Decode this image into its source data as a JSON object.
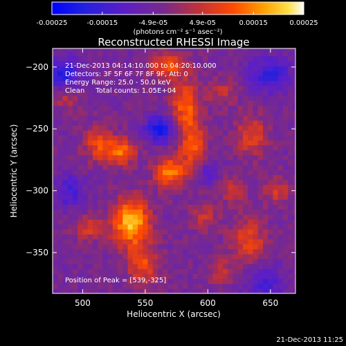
{
  "chart_data": {
    "type": "heatmap",
    "title": "Reconstructed RHESSI Image",
    "xlabel": "Heliocentric X (arcsec)",
    "ylabel": "Heliocentric Y (arcsec)",
    "xlim": [
      476,
      670
    ],
    "ylim": [
      -383,
      -185
    ],
    "x_ticks": [
      500,
      550,
      600,
      650
    ],
    "y_ticks": [
      -200,
      -250,
      -300,
      -350
    ],
    "colorbar": {
      "range": [
        -0.00025,
        0.00025
      ],
      "tick_values": [
        -0.00025,
        -0.00015,
        -4.9e-05,
        4.9e-05,
        0.00015,
        0.00025
      ],
      "tick_labels": [
        "-0.00025",
        "-0.00015",
        "-4.9e-05",
        "4.9e-05",
        "0.00015",
        "0.00025"
      ],
      "unit_label": "(photons cm⁻² s⁻¹ asec⁻²)"
    },
    "annotations": [
      "21-Dec-2013 04:14:10.000 to 04:20:10.000",
      "Detectors: 3F 5F 6F 7F 8F 9F, Att: 0",
      "Energy Range: 25.0 - 50.0 keV",
      "Clean     Total counts: 1.05E+04"
    ],
    "peak_label": "Position of Peak = [539,-325]",
    "peak": [
      539,
      -325
    ],
    "sources": [
      {
        "x": 539,
        "y": -325,
        "sx": 10,
        "sy": 13,
        "amp": 0.00025
      },
      {
        "x": 570,
        "y": -285,
        "sx": 9,
        "sy": 9,
        "amp": 0.00018
      },
      {
        "x": 588,
        "y": -262,
        "sx": 7,
        "sy": 12,
        "amp": 0.00016
      },
      {
        "x": 582,
        "y": -230,
        "sx": 8,
        "sy": 14,
        "amp": 0.00016
      },
      {
        "x": 568,
        "y": -198,
        "sx": 10,
        "sy": 7,
        "amp": 0.00015
      },
      {
        "x": 530,
        "y": -268,
        "sx": 9,
        "sy": 8,
        "amp": 0.00016
      },
      {
        "x": 512,
        "y": -262,
        "sx": 8,
        "sy": 10,
        "amp": 0.00012
      },
      {
        "x": 548,
        "y": -360,
        "sx": 9,
        "sy": 12,
        "amp": 0.00013
      },
      {
        "x": 505,
        "y": -330,
        "sx": 10,
        "sy": 7,
        "amp": 0.0001
      },
      {
        "x": 612,
        "y": -220,
        "sx": 8,
        "sy": 8,
        "amp": 8e-05
      },
      {
        "x": 635,
        "y": -255,
        "sx": 9,
        "sy": 12,
        "amp": 0.00012
      },
      {
        "x": 620,
        "y": -300,
        "sx": 7,
        "sy": 7,
        "amp": 9e-05
      },
      {
        "x": 632,
        "y": -340,
        "sx": 10,
        "sy": 12,
        "amp": 0.00013
      },
      {
        "x": 597,
        "y": -320,
        "sx": 7,
        "sy": 9,
        "amp": 9e-05
      },
      {
        "x": 610,
        "y": -365,
        "sx": 8,
        "sy": 7,
        "amp": 8e-05
      },
      {
        "x": 655,
        "y": -300,
        "sx": 8,
        "sy": 8,
        "amp": 9e-05
      },
      {
        "x": 488,
        "y": -225,
        "sx": 7,
        "sy": 8,
        "amp": 8e-05
      },
      {
        "x": 562,
        "y": -250,
        "sx": 8,
        "sy": 7,
        "amp": -0.00018
      },
      {
        "x": 490,
        "y": -300,
        "sx": 8,
        "sy": 10,
        "amp": -0.0001
      },
      {
        "x": 485,
        "y": -205,
        "sx": 9,
        "sy": 9,
        "amp": -0.00015
      },
      {
        "x": 650,
        "y": -205,
        "sx": 12,
        "sy": 10,
        "amp": -0.00012
      },
      {
        "x": 645,
        "y": -375,
        "sx": 10,
        "sy": 9,
        "amp": -0.0001
      },
      {
        "x": 600,
        "y": -285,
        "sx": 6,
        "sy": 6,
        "amp": -8e-05
      }
    ]
  },
  "footer": {
    "date_stamp": "21-Dec-2013 11:25"
  }
}
